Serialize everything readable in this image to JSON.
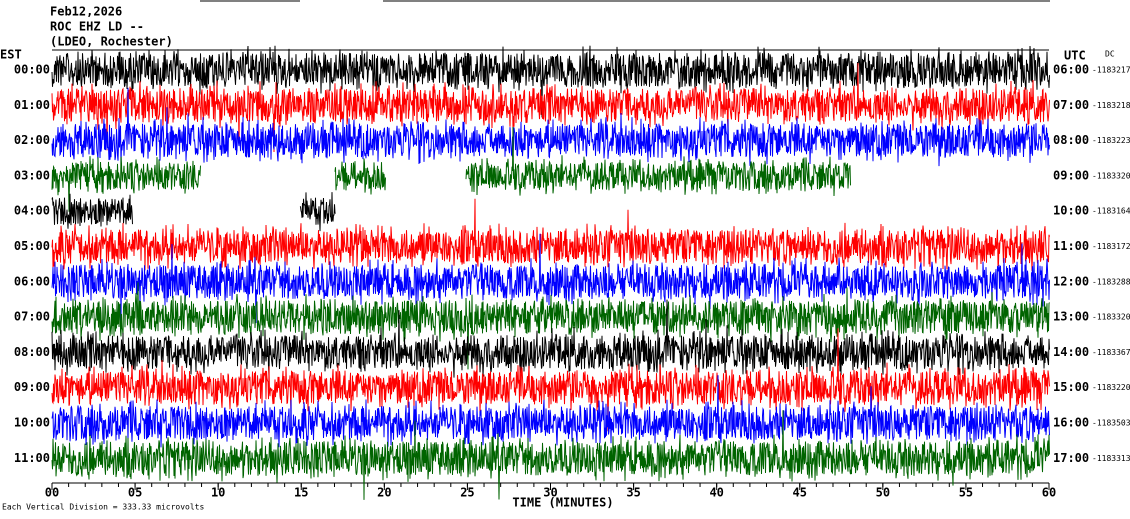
{
  "chart_data": {
    "type": "helicorder",
    "title": "Feb12,2026",
    "station": "ROC EHZ LD --",
    "network": "(LDEO, Rochester)",
    "left_zone": "EST",
    "right_zone": "UTC",
    "dc_label": "DC",
    "left_labels": [
      "00:00",
      "01:00",
      "02:00",
      "03:00",
      "04:00",
      "05:00",
      "06:00",
      "07:00",
      "08:00",
      "09:00",
      "10:00",
      "11:00"
    ],
    "right_labels": [
      "06:00",
      "07:00",
      "08:00",
      "09:00",
      "10:00",
      "11:00",
      "12:00",
      "13:00",
      "14:00",
      "15:00",
      "16:00",
      "17:00"
    ],
    "dc_values": [
      "-1183217",
      "-1183218",
      "-1183223",
      "-1183320",
      "-1183164",
      "-1183172",
      "-1183288",
      "-1183320",
      "-1183367",
      "-1183220",
      "-1183503",
      "-1183313"
    ],
    "colors": [
      "#000000",
      "#ff0000",
      "#0000ff",
      "#006400"
    ],
    "xlabel": "TIME (MINUTES)",
    "xlim": [
      0,
      60
    ],
    "xticks": [
      {
        "value": 0,
        "label": "00"
      },
      {
        "value": 5,
        "label": "05"
      },
      10,
      15,
      20,
      25,
      30,
      35,
      40,
      45,
      50,
      55,
      60
    ],
    "scale_note": "Each Vertical Division =  333.33 microvolts"
  }
}
